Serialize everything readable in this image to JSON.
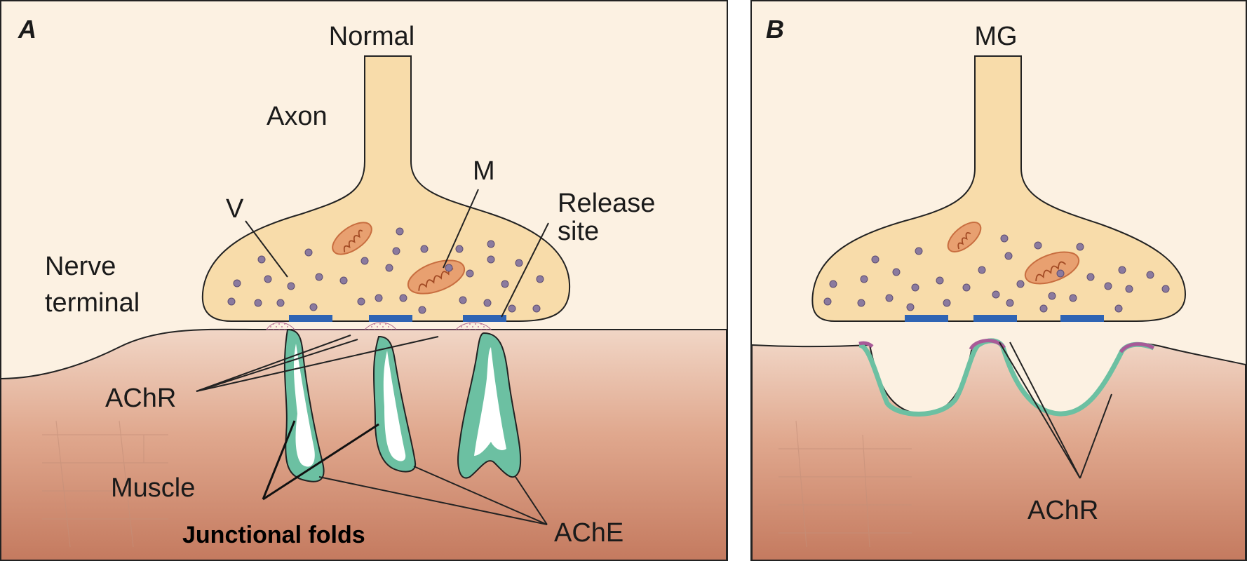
{
  "panel_a": {
    "letter": "A",
    "title": "Normal",
    "labels": {
      "axon": "Axon",
      "vesicle": "V",
      "mitochondrion": "M",
      "release_site_line1": "Release",
      "release_site_line2": "site",
      "nerve_terminal_line1": "Nerve",
      "nerve_terminal_line2": "terminal",
      "achr": "AChR",
      "muscle": "Muscle",
      "junctional_folds": "Junctional folds",
      "ache": "AChE"
    }
  },
  "panel_b": {
    "letter": "B",
    "title": "MG",
    "labels": {
      "achr": "AChR"
    }
  },
  "colors": {
    "background": "#fcf1e2",
    "terminal_fill": "#f8dcaa",
    "muscle_top": "#eeccba",
    "muscle_bottom": "#c47a5f",
    "ache_green": "#6cc0a2",
    "achr_pink": "#a85a98",
    "release_site_blue": "#2f64b4",
    "vesicle": "#8b7a9e",
    "mitochondrion": "#e8a070"
  }
}
